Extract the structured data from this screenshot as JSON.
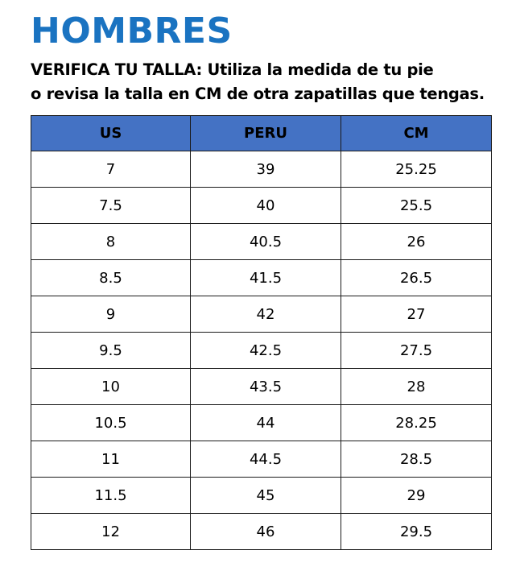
{
  "title": "HOMBRES",
  "subtitle": {
    "line1": "VERIFICA TU TALLA: Utiliza la medida de tu pie",
    "line2": "o revisa la talla en CM de otra zapatillas que tengas."
  },
  "colors": {
    "title": "#1a73c1",
    "header_bg": "#4472c4"
  },
  "table": {
    "headers": [
      "US",
      "PERU",
      "CM"
    ],
    "rows": [
      [
        "7",
        "39",
        "25.25"
      ],
      [
        "7.5",
        "40",
        "25.5"
      ],
      [
        "8",
        "40.5",
        "26"
      ],
      [
        "8.5",
        "41.5",
        "26.5"
      ],
      [
        "9",
        "42",
        "27"
      ],
      [
        "9.5",
        "42.5",
        "27.5"
      ],
      [
        "10",
        "43.5",
        "28"
      ],
      [
        "10.5",
        "44",
        "28.25"
      ],
      [
        "11",
        "44.5",
        "28.5"
      ],
      [
        "11.5",
        "45",
        "29"
      ],
      [
        "12",
        "46",
        "29.5"
      ]
    ]
  }
}
